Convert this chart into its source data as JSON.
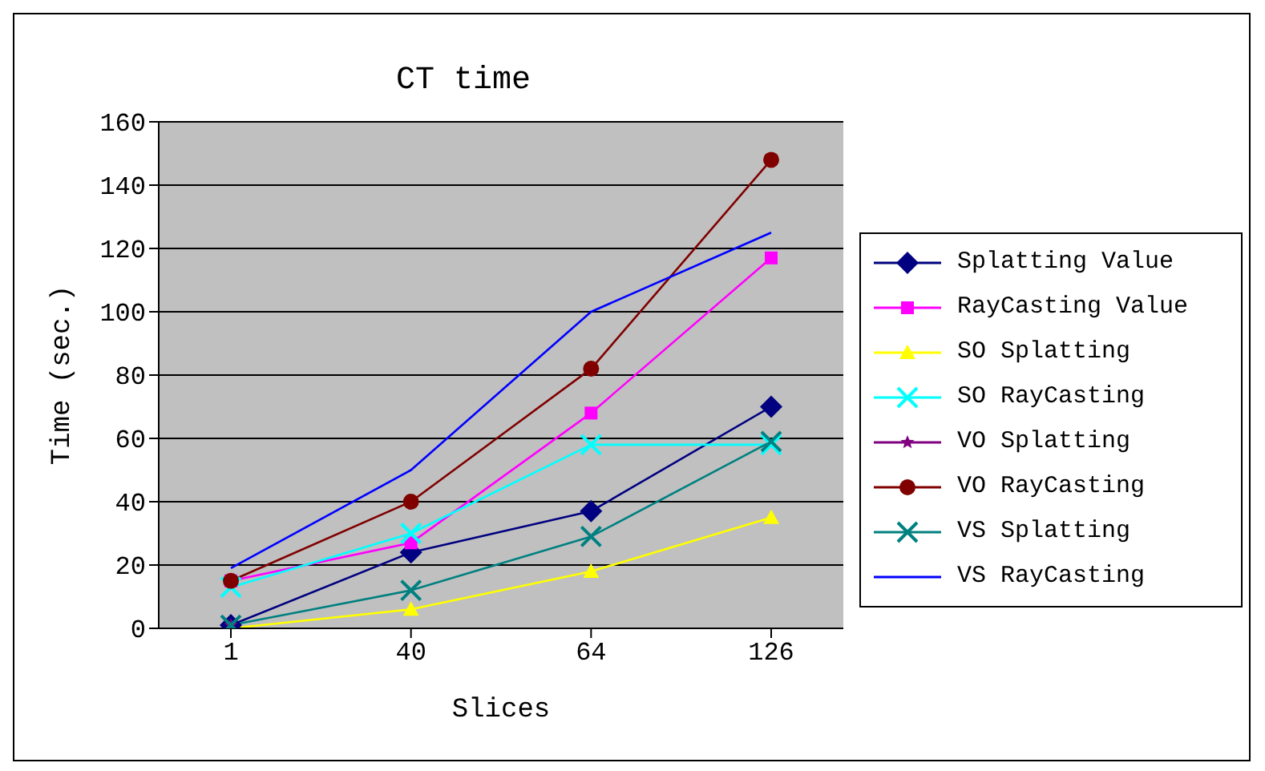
{
  "chart_data": {
    "type": "line",
    "title": "CT time",
    "xlabel": "Slices",
    "ylabel": "Time (sec.)",
    "categories": [
      "1",
      "40",
      "64",
      "126"
    ],
    "series": [
      {
        "name": "Splatting Value",
        "color": "#000080",
        "marker": "diamond",
        "values": [
          1,
          24,
          37,
          70
        ]
      },
      {
        "name": "RayCasting Value",
        "color": "#ff00ff",
        "marker": "square",
        "values": [
          15,
          27,
          68,
          117
        ]
      },
      {
        "name": "SO Splatting",
        "color": "#ffff00",
        "marker": "triangle",
        "values": [
          0,
          6,
          18,
          35
        ]
      },
      {
        "name": "SO RayCasting",
        "color": "#00ffff",
        "marker": "cross",
        "values": [
          13,
          30,
          58,
          58
        ]
      },
      {
        "name": "VO Splatting",
        "color": "#800080",
        "marker": "star",
        "values": [
          1,
          null,
          null,
          null
        ]
      },
      {
        "name": "VO RayCasting",
        "color": "#800000",
        "marker": "circle",
        "values": [
          15,
          40,
          82,
          148
        ]
      },
      {
        "name": "VS Splatting",
        "color": "#008080",
        "marker": "cross",
        "values": [
          1,
          12,
          29,
          59
        ]
      },
      {
        "name": "VS RayCasting",
        "color": "#0000ff",
        "marker": "none",
        "values": [
          19,
          50,
          100,
          125
        ]
      }
    ],
    "ylim": [
      0,
      160
    ],
    "yticks": [
      0,
      20,
      40,
      60,
      80,
      100,
      120,
      140,
      160
    ],
    "grid": "y",
    "legend": "right"
  }
}
